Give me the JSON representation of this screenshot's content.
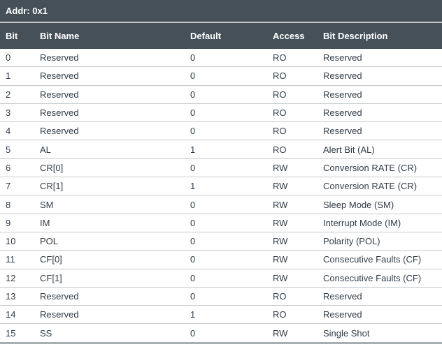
{
  "title_bar": {
    "label": "Addr: 0x1"
  },
  "table": {
    "columns": [
      "Bit",
      "Bit Name",
      "Default",
      "Access",
      "Bit Description"
    ],
    "rows": [
      {
        "bit": "0",
        "name": "Reserved",
        "default": "0",
        "access": "RO",
        "description": "Reserved"
      },
      {
        "bit": "1",
        "name": "Reserved",
        "default": "0",
        "access": "RO",
        "description": "Reserved"
      },
      {
        "bit": "2",
        "name": "Reserved",
        "default": "0",
        "access": "RO",
        "description": "Reserved"
      },
      {
        "bit": "3",
        "name": "Reserved",
        "default": "0",
        "access": "RO",
        "description": "Reserved"
      },
      {
        "bit": "4",
        "name": "Reserved",
        "default": "0",
        "access": "RO",
        "description": "Reserved"
      },
      {
        "bit": "5",
        "name": "AL",
        "default": "1",
        "access": "RO",
        "description": "Alert Bit (AL)"
      },
      {
        "bit": "6",
        "name": "CR[0]",
        "default": "0",
        "access": "RW",
        "description": "Conversion RATE (CR)"
      },
      {
        "bit": "7",
        "name": "CR[1]",
        "default": "1",
        "access": "RW",
        "description": "Conversion RATE (CR)"
      },
      {
        "bit": "8",
        "name": "SM",
        "default": "0",
        "access": "RW",
        "description": "Sleep Mode (SM)"
      },
      {
        "bit": "9",
        "name": "IM",
        "default": "0",
        "access": "RW",
        "description": "Interrupt Mode (IM)"
      },
      {
        "bit": "10",
        "name": "POL",
        "default": "0",
        "access": "RW",
        "description": "Polarity (POL)"
      },
      {
        "bit": "11",
        "name": "CF[0]",
        "default": "0",
        "access": "RW",
        "description": "Consecutive Faults (CF)"
      },
      {
        "bit": "12",
        "name": "CF[1]",
        "default": "0",
        "access": "RW",
        "description": "Consecutive Faults (CF)"
      },
      {
        "bit": "13",
        "name": "Reserved",
        "default": "0",
        "access": "RO",
        "description": "Reserved"
      },
      {
        "bit": "14",
        "name": "Reserved",
        "default": "1",
        "access": "RO",
        "description": "Reserved"
      },
      {
        "bit": "15",
        "name": "SS",
        "default": "0",
        "access": "RW",
        "description": "Single Shot"
      }
    ]
  },
  "colors": {
    "header_bg": "#455059",
    "header_text": "#ffffff",
    "body_text": "#313c48",
    "row_divider": "#c7cacc",
    "header_divider": "#c2c7ca",
    "bottom_border": "#a9aeb1",
    "row_bg": "#ffffff"
  }
}
